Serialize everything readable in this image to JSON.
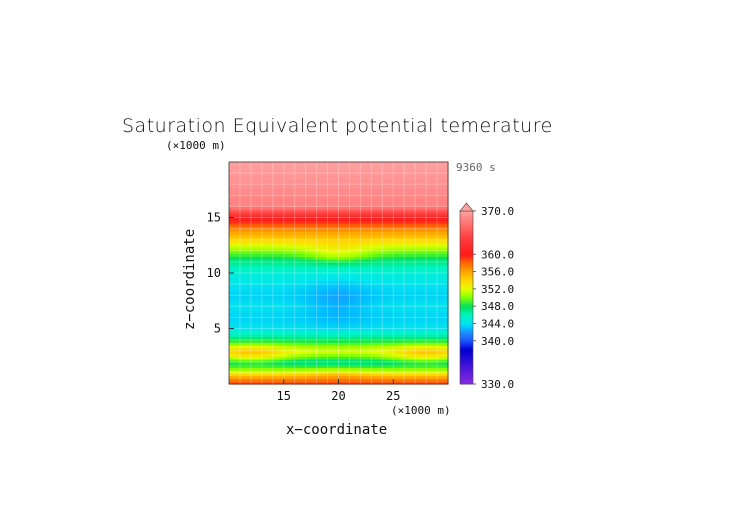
{
  "chart_data": {
    "type": "heatmap",
    "title": "Saturation Equivalent potential temerature",
    "time_label": "9360 s",
    "xlabel": "x−coordinate",
    "ylabel": "z−coordinate",
    "x_units": "(×1000 m)",
    "y_units": "(×1000 m)",
    "xlim": [
      10,
      30
    ],
    "ylim": [
      0,
      20
    ],
    "x_ticks": [
      15,
      20,
      25
    ],
    "y_ticks": [
      5,
      10,
      15
    ],
    "colorbar": {
      "min": 330,
      "max": 370,
      "tick_labels": [
        "370.0",
        "360.0",
        "356.0",
        "352.0",
        "348.0",
        "344.0",
        "340.0",
        "330.0"
      ],
      "tick_values": [
        370,
        360,
        356,
        352,
        348,
        344,
        340,
        330
      ],
      "colors": [
        {
          "value": 330,
          "color": "#8a2be2"
        },
        {
          "value": 338,
          "color": "#0000cd"
        },
        {
          "value": 340,
          "color": "#1e50ff"
        },
        {
          "value": 342,
          "color": "#1e90ff"
        },
        {
          "value": 343,
          "color": "#00bfff"
        },
        {
          "value": 344,
          "color": "#00e5ee"
        },
        {
          "value": 346,
          "color": "#00f5c0"
        },
        {
          "value": 348,
          "color": "#00e060"
        },
        {
          "value": 350,
          "color": "#80ff00"
        },
        {
          "value": 352,
          "color": "#e0ff00"
        },
        {
          "value": 354,
          "color": "#ffd700"
        },
        {
          "value": 356,
          "color": "#ffa500"
        },
        {
          "value": 358,
          "color": "#ff6a00"
        },
        {
          "value": 360,
          "color": "#ff1a1a"
        },
        {
          "value": 364,
          "color": "#ff4040"
        },
        {
          "value": 370,
          "color": "#ffa0a0"
        }
      ]
    },
    "profile_z_km": [
      0,
      0.5,
      1,
      1.5,
      2,
      3,
      4,
      5,
      6,
      7,
      8,
      9,
      10,
      11,
      12,
      13,
      14,
      15,
      16,
      20
    ],
    "profile_theta_es": [
      359,
      357,
      353,
      349,
      347,
      352,
      348,
      344,
      343.5,
      344,
      343.5,
      344,
      345,
      347,
      350,
      354,
      357,
      361,
      368,
      370
    ]
  }
}
